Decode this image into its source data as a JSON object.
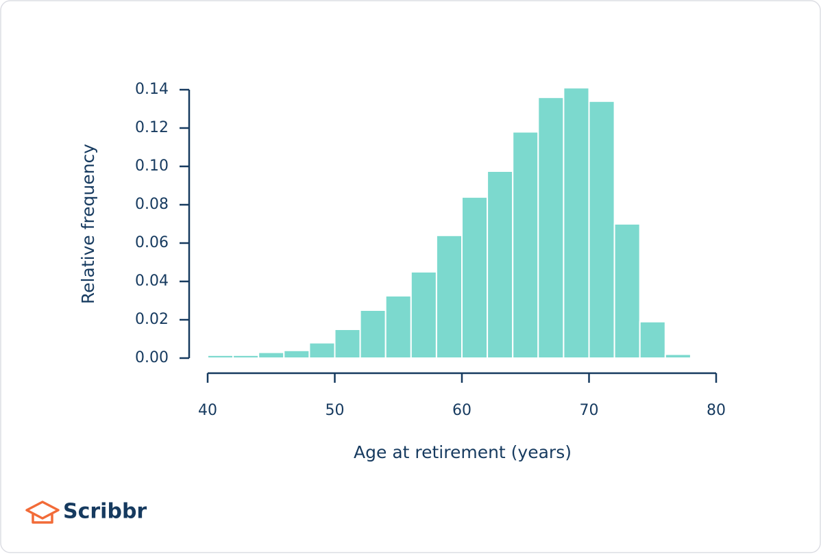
{
  "chart_data": {
    "type": "histogram",
    "xlabel": "Age at retirement (years)",
    "ylabel": "Relative frequency",
    "bins": [
      40,
      42,
      44,
      46,
      48,
      50,
      52,
      54,
      56,
      58,
      60,
      62,
      64,
      66,
      68,
      70,
      72,
      74,
      76,
      78
    ],
    "values": [
      0.0015,
      0.0015,
      0.003,
      0.004,
      0.008,
      0.015,
      0.025,
      0.0325,
      0.045,
      0.064,
      0.084,
      0.0975,
      0.118,
      0.136,
      0.141,
      0.134,
      0.07,
      0.019,
      0.002
    ],
    "color": "#7cd9ce",
    "xlim": [
      40,
      80
    ],
    "xticks": [
      40,
      50,
      60,
      70,
      80
    ],
    "ylim": [
      0,
      0.14
    ],
    "yticks": [
      {
        "value": 0,
        "label": "0.00"
      },
      {
        "value": 0.02,
        "label": "0.02"
      },
      {
        "value": 0.04,
        "label": "0.04"
      },
      {
        "value": 0.06,
        "label": "0.06"
      },
      {
        "value": 0.08,
        "label": "0.08"
      },
      {
        "value": 0.1,
        "label": "0.10"
      },
      {
        "value": 0.12,
        "label": "0.12"
      },
      {
        "value": 0.14,
        "label": "0.14"
      }
    ]
  },
  "brand": "Scribbr"
}
